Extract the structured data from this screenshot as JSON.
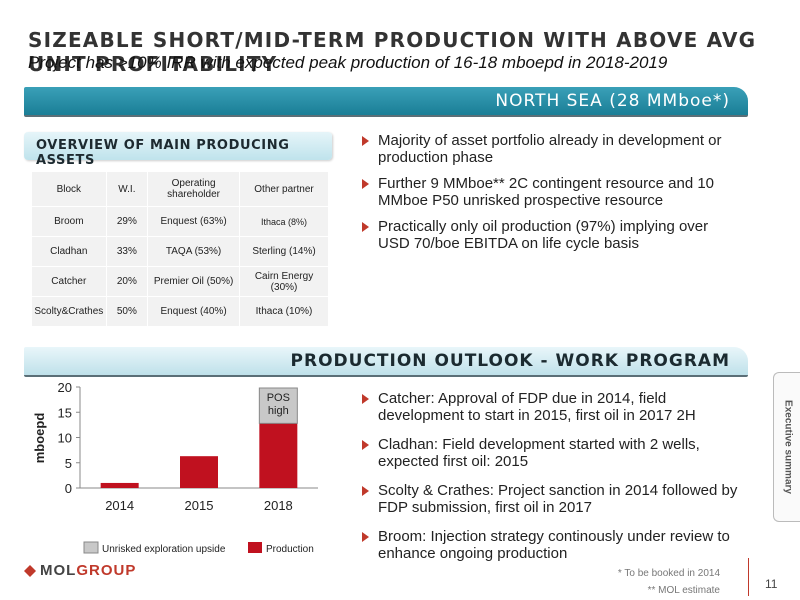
{
  "header": {
    "title": "SIZEABLE SHORT/MID-TERM PRODUCTION WITH ABOVE AVG UNIT PROFITABILITY",
    "subtitle": "Project has >10% IRR with expected peak production of 16-18 mboepd in 2018-2019"
  },
  "region_bar": {
    "label": "NORTH SEA (28 MMboe*)"
  },
  "overview": {
    "label": "OVERVIEW OF MAIN PRODUCING ASSETS",
    "columns": [
      "Block",
      "W.I.",
      "Operating shareholder",
      "Other partner"
    ],
    "rows": [
      [
        "Broom",
        "29%",
        "Enquest (63%)",
        "Ithaca (8%)"
      ],
      [
        "Cladhan",
        "33%",
        "TAQA (53%)",
        "Sterling (14%)"
      ],
      [
        "Catcher",
        "20%",
        "Premier Oil (50%)",
        "Cairn Energy (30%)"
      ],
      [
        "Scolty&Crathes",
        "50%",
        "Enquest (40%)",
        "Ithaca (10%)"
      ]
    ]
  },
  "bullets_top": [
    "Majority of asset portfolio already in development or production phase",
    "Further 9 MMboe** 2C contingent resource and 10 MMboe P50 unrisked prospective resource",
    "Practically only oil production (97%) implying over USD 70/boe EBITDA on life cycle basis"
  ],
  "production_bar": {
    "label": "PRODUCTION OUTLOOK - WORK PROGRAM"
  },
  "bullets_bottom": [
    "Catcher: Approval of FDP due in 2014, field development to start in 2015, first oil in 2017 2H",
    "Cladhan: Field development started with 2 wells, expected first oil: 2015",
    "Scolty & Crathes: Project sanction in 2014 followed by FDP submission, first oil in 2017",
    "Broom: Injection strategy continously under review to enhance ongoing production"
  ],
  "chart_data": {
    "type": "bar",
    "stacked": true,
    "categories": [
      "2014",
      "2015",
      "2018"
    ],
    "series": [
      {
        "name": "Production",
        "values": [
          1,
          6.3,
          12.8
        ],
        "color": "#c0111f"
      },
      {
        "name": "Unrisked exploration upside",
        "values": [
          0,
          0,
          7
        ],
        "color": "#c8c8c8"
      }
    ],
    "ylabel": "mboepd",
    "ylim": [
      0,
      20
    ],
    "yticks": [
      0,
      5,
      10,
      15,
      20
    ],
    "annotation": "POS high",
    "legend_position": "bottom"
  },
  "footer": {
    "logo_mol": "MOL",
    "logo_group": "GROUP",
    "note1": "* To be booked in 2014",
    "note2": "** MOL estimate",
    "page_number": "11",
    "side_tab": "Executive summary"
  }
}
